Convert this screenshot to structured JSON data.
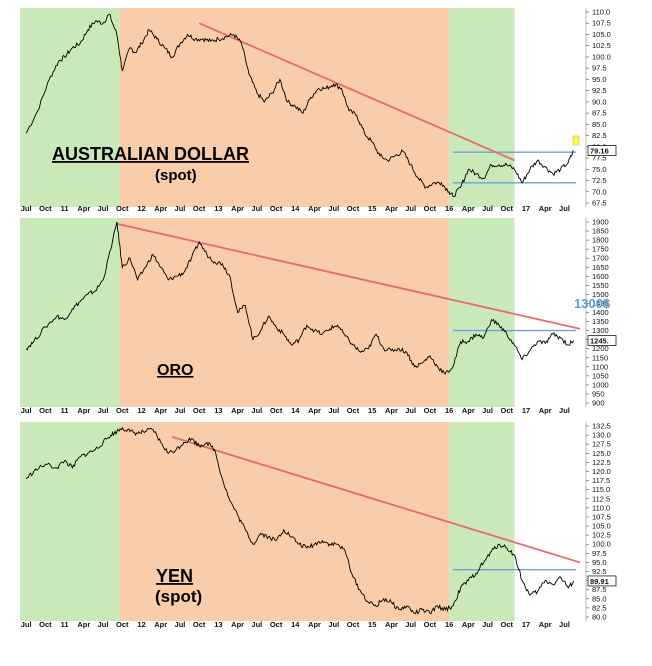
{
  "chart_data": [
    {
      "type": "line",
      "title": "AUSTRALIAN DOLLAR",
      "subtitle": "(spot)",
      "ylim": [
        67.5,
        110.0
      ],
      "yticks": [
        "110.0",
        "107.5",
        "105.0",
        "102.5",
        "100.0",
        "97.5",
        "95.0",
        "92.5",
        "90.0",
        "87.5",
        "85.0",
        "82.5",
        "80.0",
        "77.5",
        "75.0",
        "72.5",
        "70.0",
        "67.5"
      ],
      "last_value_label": "79.16",
      "x_labels": [
        "Jul",
        "Oct",
        "11",
        "Apr",
        "Jul",
        "Oct",
        "12",
        "Apr",
        "Jul",
        "Oct",
        "13",
        "Apr",
        "Jul",
        "Oct",
        "14",
        "Apr",
        "Jul",
        "Oct",
        "15",
        "Apr",
        "Jul",
        "Oct",
        "16",
        "Apr",
        "Jul",
        "Oct",
        "17",
        "Apr",
        "Jul"
      ],
      "series": [
        {
          "values": [
            [
              2010.5,
              83.0
            ],
            [
              2010.65,
              88.0
            ],
            [
              2010.8,
              95.0
            ],
            [
              2010.92,
              99.0
            ],
            [
              2011.0,
              100.0
            ],
            [
              2011.1,
              102.0
            ],
            [
              2011.2,
              103.0
            ],
            [
              2011.3,
              106.0
            ],
            [
              2011.4,
              108.0
            ],
            [
              2011.5,
              107.5
            ],
            [
              2011.58,
              109.5
            ],
            [
              2011.68,
              105.0
            ],
            [
              2011.75,
              97.0
            ],
            [
              2011.85,
              102.0
            ],
            [
              2011.92,
              101.0
            ],
            [
              2012.0,
              103.0
            ],
            [
              2012.1,
              106.0
            ],
            [
              2012.2,
              104.0
            ],
            [
              2012.3,
              102.0
            ],
            [
              2012.4,
              100.0
            ],
            [
              2012.5,
              103.0
            ],
            [
              2012.6,
              105.0
            ],
            [
              2012.7,
              104.0
            ],
            [
              2012.8,
              104.0
            ],
            [
              2012.9,
              103.5
            ],
            [
              2013.0,
              104.0
            ],
            [
              2013.1,
              104.5
            ],
            [
              2013.2,
              105.0
            ],
            [
              2013.3,
              103.0
            ],
            [
              2013.4,
              96.0
            ],
            [
              2013.5,
              92.0
            ],
            [
              2013.6,
              90.0
            ],
            [
              2013.7,
              92.0
            ],
            [
              2013.8,
              95.0
            ],
            [
              2013.9,
              90.0
            ],
            [
              2014.0,
              89.0
            ],
            [
              2014.1,
              87.5
            ],
            [
              2014.2,
              91.0
            ],
            [
              2014.3,
              93.0
            ],
            [
              2014.4,
              93.0
            ],
            [
              2014.5,
              94.0
            ],
            [
              2014.6,
              93.0
            ],
            [
              2014.7,
              88.0
            ],
            [
              2014.8,
              87.0
            ],
            [
              2014.9,
              83.0
            ],
            [
              2015.0,
              81.0
            ],
            [
              2015.1,
              78.0
            ],
            [
              2015.2,
              77.0
            ],
            [
              2015.3,
              78.0
            ],
            [
              2015.4,
              79.0
            ],
            [
              2015.5,
              76.0
            ],
            [
              2015.6,
              73.0
            ],
            [
              2015.7,
              71.0
            ],
            [
              2015.8,
              72.0
            ],
            [
              2015.9,
              72.0
            ],
            [
              2016.0,
              70.0
            ],
            [
              2016.05,
              69.0
            ],
            [
              2016.15,
              71.0
            ],
            [
              2016.25,
              75.0
            ],
            [
              2016.35,
              74.0
            ],
            [
              2016.45,
              73.0
            ],
            [
              2016.55,
              76.0
            ],
            [
              2016.65,
              76.0
            ],
            [
              2016.75,
              76.0
            ],
            [
              2016.85,
              75.0
            ],
            [
              2016.95,
              72.0
            ],
            [
              2017.05,
              75.0
            ],
            [
              2017.15,
              77.0
            ],
            [
              2017.25,
              75.5
            ],
            [
              2017.35,
              74.0
            ],
            [
              2017.45,
              75.0
            ],
            [
              2017.55,
              76.5
            ],
            [
              2017.62,
              79.16
            ]
          ]
        }
      ],
      "trendline": [
        [
          2012.75,
          107.5
        ],
        [
          2016.85,
          77.0
        ]
      ],
      "support_lines": [
        78.8,
        72.0
      ]
    },
    {
      "type": "line",
      "title": "ORO",
      "ylim": [
        900,
        1900
      ],
      "yticks": [
        "1900",
        "1850",
        "1800",
        "1750",
        "1700",
        "1650",
        "1600",
        "1550",
        "1500",
        "1450",
        "1400",
        "1350",
        "1300",
        "1250",
        "1200",
        "1150",
        "1100",
        "1050",
        "1000",
        "950",
        "900"
      ],
      "last_value_label": "1245.",
      "annotation": "1300$",
      "x_labels": [
        "Jul",
        "Oct",
        "11",
        "Apr",
        "Jul",
        "Oct",
        "12",
        "Apr",
        "Jul",
        "Oct",
        "13",
        "Apr",
        "Jul",
        "Oct",
        "14",
        "Apr",
        "Jul",
        "Oct",
        "15",
        "Apr",
        "Jul",
        "Oct",
        "16",
        "Apr",
        "Jul",
        "Oct",
        "17",
        "Apr",
        "Jul"
      ],
      "series": [
        {
          "values": [
            [
              2010.5,
              1200
            ],
            [
              2010.6,
              1240
            ],
            [
              2010.75,
              1320
            ],
            [
              2010.9,
              1380
            ],
            [
              2011.0,
              1360
            ],
            [
              2011.1,
              1420
            ],
            [
              2011.2,
              1460
            ],
            [
              2011.3,
              1500
            ],
            [
              2011.4,
              1520
            ],
            [
              2011.5,
              1580
            ],
            [
              2011.6,
              1750
            ],
            [
              2011.68,
              1900
            ],
            [
              2011.75,
              1650
            ],
            [
              2011.85,
              1700
            ],
            [
              2011.95,
              1580
            ],
            [
              2012.05,
              1650
            ],
            [
              2012.15,
              1720
            ],
            [
              2012.25,
              1650
            ],
            [
              2012.35,
              1580
            ],
            [
              2012.45,
              1600
            ],
            [
              2012.55,
              1620
            ],
            [
              2012.65,
              1700
            ],
            [
              2012.75,
              1790
            ],
            [
              2012.85,
              1720
            ],
            [
              2012.95,
              1680
            ],
            [
              2013.05,
              1670
            ],
            [
              2013.15,
              1600
            ],
            [
              2013.25,
              1400
            ],
            [
              2013.35,
              1440
            ],
            [
              2013.45,
              1250
            ],
            [
              2013.55,
              1300
            ],
            [
              2013.65,
              1380
            ],
            [
              2013.75,
              1320
            ],
            [
              2013.85,
              1280
            ],
            [
              2013.95,
              1220
            ],
            [
              2014.05,
              1250
            ],
            [
              2014.15,
              1330
            ],
            [
              2014.25,
              1300
            ],
            [
              2014.35,
              1280
            ],
            [
              2014.45,
              1310
            ],
            [
              2014.55,
              1330
            ],
            [
              2014.65,
              1270
            ],
            [
              2014.75,
              1220
            ],
            [
              2014.85,
              1180
            ],
            [
              2014.95,
              1200
            ],
            [
              2015.05,
              1280
            ],
            [
              2015.15,
              1200
            ],
            [
              2015.25,
              1190
            ],
            [
              2015.35,
              1200
            ],
            [
              2015.45,
              1180
            ],
            [
              2015.55,
              1100
            ],
            [
              2015.65,
              1120
            ],
            [
              2015.75,
              1160
            ],
            [
              2015.85,
              1100
            ],
            [
              2015.95,
              1060
            ],
            [
              2016.05,
              1100
            ],
            [
              2016.15,
              1240
            ],
            [
              2016.25,
              1240
            ],
            [
              2016.35,
              1280
            ],
            [
              2016.45,
              1260
            ],
            [
              2016.55,
              1360
            ],
            [
              2016.65,
              1330
            ],
            [
              2016.75,
              1280
            ],
            [
              2016.85,
              1220
            ],
            [
              2016.95,
              1140
            ],
            [
              2017.05,
              1190
            ],
            [
              2017.15,
              1240
            ],
            [
              2017.25,
              1230
            ],
            [
              2017.35,
              1280
            ],
            [
              2017.45,
              1260
            ],
            [
              2017.55,
              1220
            ],
            [
              2017.62,
              1245
            ]
          ]
        }
      ],
      "trendline": [
        [
          2011.68,
          1890
        ],
        [
          2017.7,
          1310
        ]
      ],
      "support_lines": [
        1300
      ]
    },
    {
      "type": "line",
      "title": "YEN",
      "subtitle": "(spot)",
      "ylim": [
        80.0,
        132.5
      ],
      "yticks": [
        "132.5",
        "130.0",
        "127.5",
        "125.0",
        "122.5",
        "120.0",
        "117.5",
        "115.0",
        "112.5",
        "110.0",
        "107.5",
        "105.0",
        "102.5",
        "100.0",
        "97.5",
        "95.0",
        "92.5",
        "90.0",
        "87.5",
        "85.0",
        "82.5",
        "80.0"
      ],
      "last_value_label": "89.91",
      "x_labels": [
        "Jul",
        "Oct",
        "11",
        "Apr",
        "Jul",
        "Oct",
        "12",
        "Apr",
        "Jul",
        "Oct",
        "13",
        "Apr",
        "Jul",
        "Oct",
        "14",
        "Apr",
        "Jul",
        "Oct",
        "15",
        "Apr",
        "Jul",
        "Oct",
        "16",
        "Apr",
        "Jul",
        "Oct",
        "17",
        "Apr",
        "Jul"
      ],
      "series": [
        {
          "values": [
            [
              2010.5,
              118
            ],
            [
              2010.6,
              120
            ],
            [
              2010.75,
              122
            ],
            [
              2010.9,
              121
            ],
            [
              2011.0,
              123
            ],
            [
              2011.1,
              121
            ],
            [
              2011.2,
              124
            ],
            [
              2011.3,
              125
            ],
            [
              2011.4,
              126
            ],
            [
              2011.5,
              128
            ],
            [
              2011.6,
              130
            ],
            [
              2011.68,
              131
            ],
            [
              2011.75,
              132
            ],
            [
              2011.85,
              131
            ],
            [
              2011.95,
              130.5
            ],
            [
              2012.05,
              131
            ],
            [
              2012.15,
              131.5
            ],
            [
              2012.25,
              128
            ],
            [
              2012.35,
              125
            ],
            [
              2012.45,
              126
            ],
            [
              2012.55,
              128
            ],
            [
              2012.65,
              129
            ],
            [
              2012.75,
              127
            ],
            [
              2012.85,
              128
            ],
            [
              2012.95,
              126
            ],
            [
              2013.05,
              118
            ],
            [
              2013.15,
              112
            ],
            [
              2013.25,
              108
            ],
            [
              2013.35,
              104
            ],
            [
              2013.45,
              100
            ],
            [
              2013.55,
              103
            ],
            [
              2013.65,
              102
            ],
            [
              2013.75,
              101
            ],
            [
              2013.85,
              104
            ],
            [
              2013.95,
              102
            ],
            [
              2014.05,
              100
            ],
            [
              2014.15,
              99
            ],
            [
              2014.25,
              100
            ],
            [
              2014.35,
              101
            ],
            [
              2014.45,
              100
            ],
            [
              2014.55,
              100
            ],
            [
              2014.65,
              98
            ],
            [
              2014.75,
              91
            ],
            [
              2014.85,
              87
            ],
            [
              2014.95,
              84
            ],
            [
              2015.05,
              83
            ],
            [
              2015.15,
              85
            ],
            [
              2015.25,
              84
            ],
            [
              2015.35,
              82
            ],
            [
              2015.45,
              83
            ],
            [
              2015.55,
              81
            ],
            [
              2015.65,
              82
            ],
            [
              2015.75,
              81
            ],
            [
              2015.85,
              83
            ],
            [
              2015.95,
              82
            ],
            [
              2016.05,
              83
            ],
            [
              2016.15,
              88
            ],
            [
              2016.25,
              90
            ],
            [
              2016.35,
              92
            ],
            [
              2016.45,
              95
            ],
            [
              2016.55,
              98
            ],
            [
              2016.65,
              100
            ],
            [
              2016.75,
              99
            ],
            [
              2016.85,
              97
            ],
            [
              2016.95,
              90
            ],
            [
              2017.05,
              86
            ],
            [
              2017.15,
              87
            ],
            [
              2017.25,
              90
            ],
            [
              2017.35,
              89
            ],
            [
              2017.45,
              91
            ],
            [
              2017.55,
              88
            ],
            [
              2017.62,
              89.91
            ]
          ]
        }
      ],
      "trendline": [
        [
          2012.4,
          129.5
        ],
        [
          2017.7,
          95.0
        ]
      ],
      "support_lines": [
        93.0
      ]
    }
  ],
  "colors": {
    "green_band": "#c9e9b8",
    "orange_band": "#f9cda9",
    "trendline": "#e8696a",
    "support": "#6fa0d8",
    "series": "#000000"
  }
}
